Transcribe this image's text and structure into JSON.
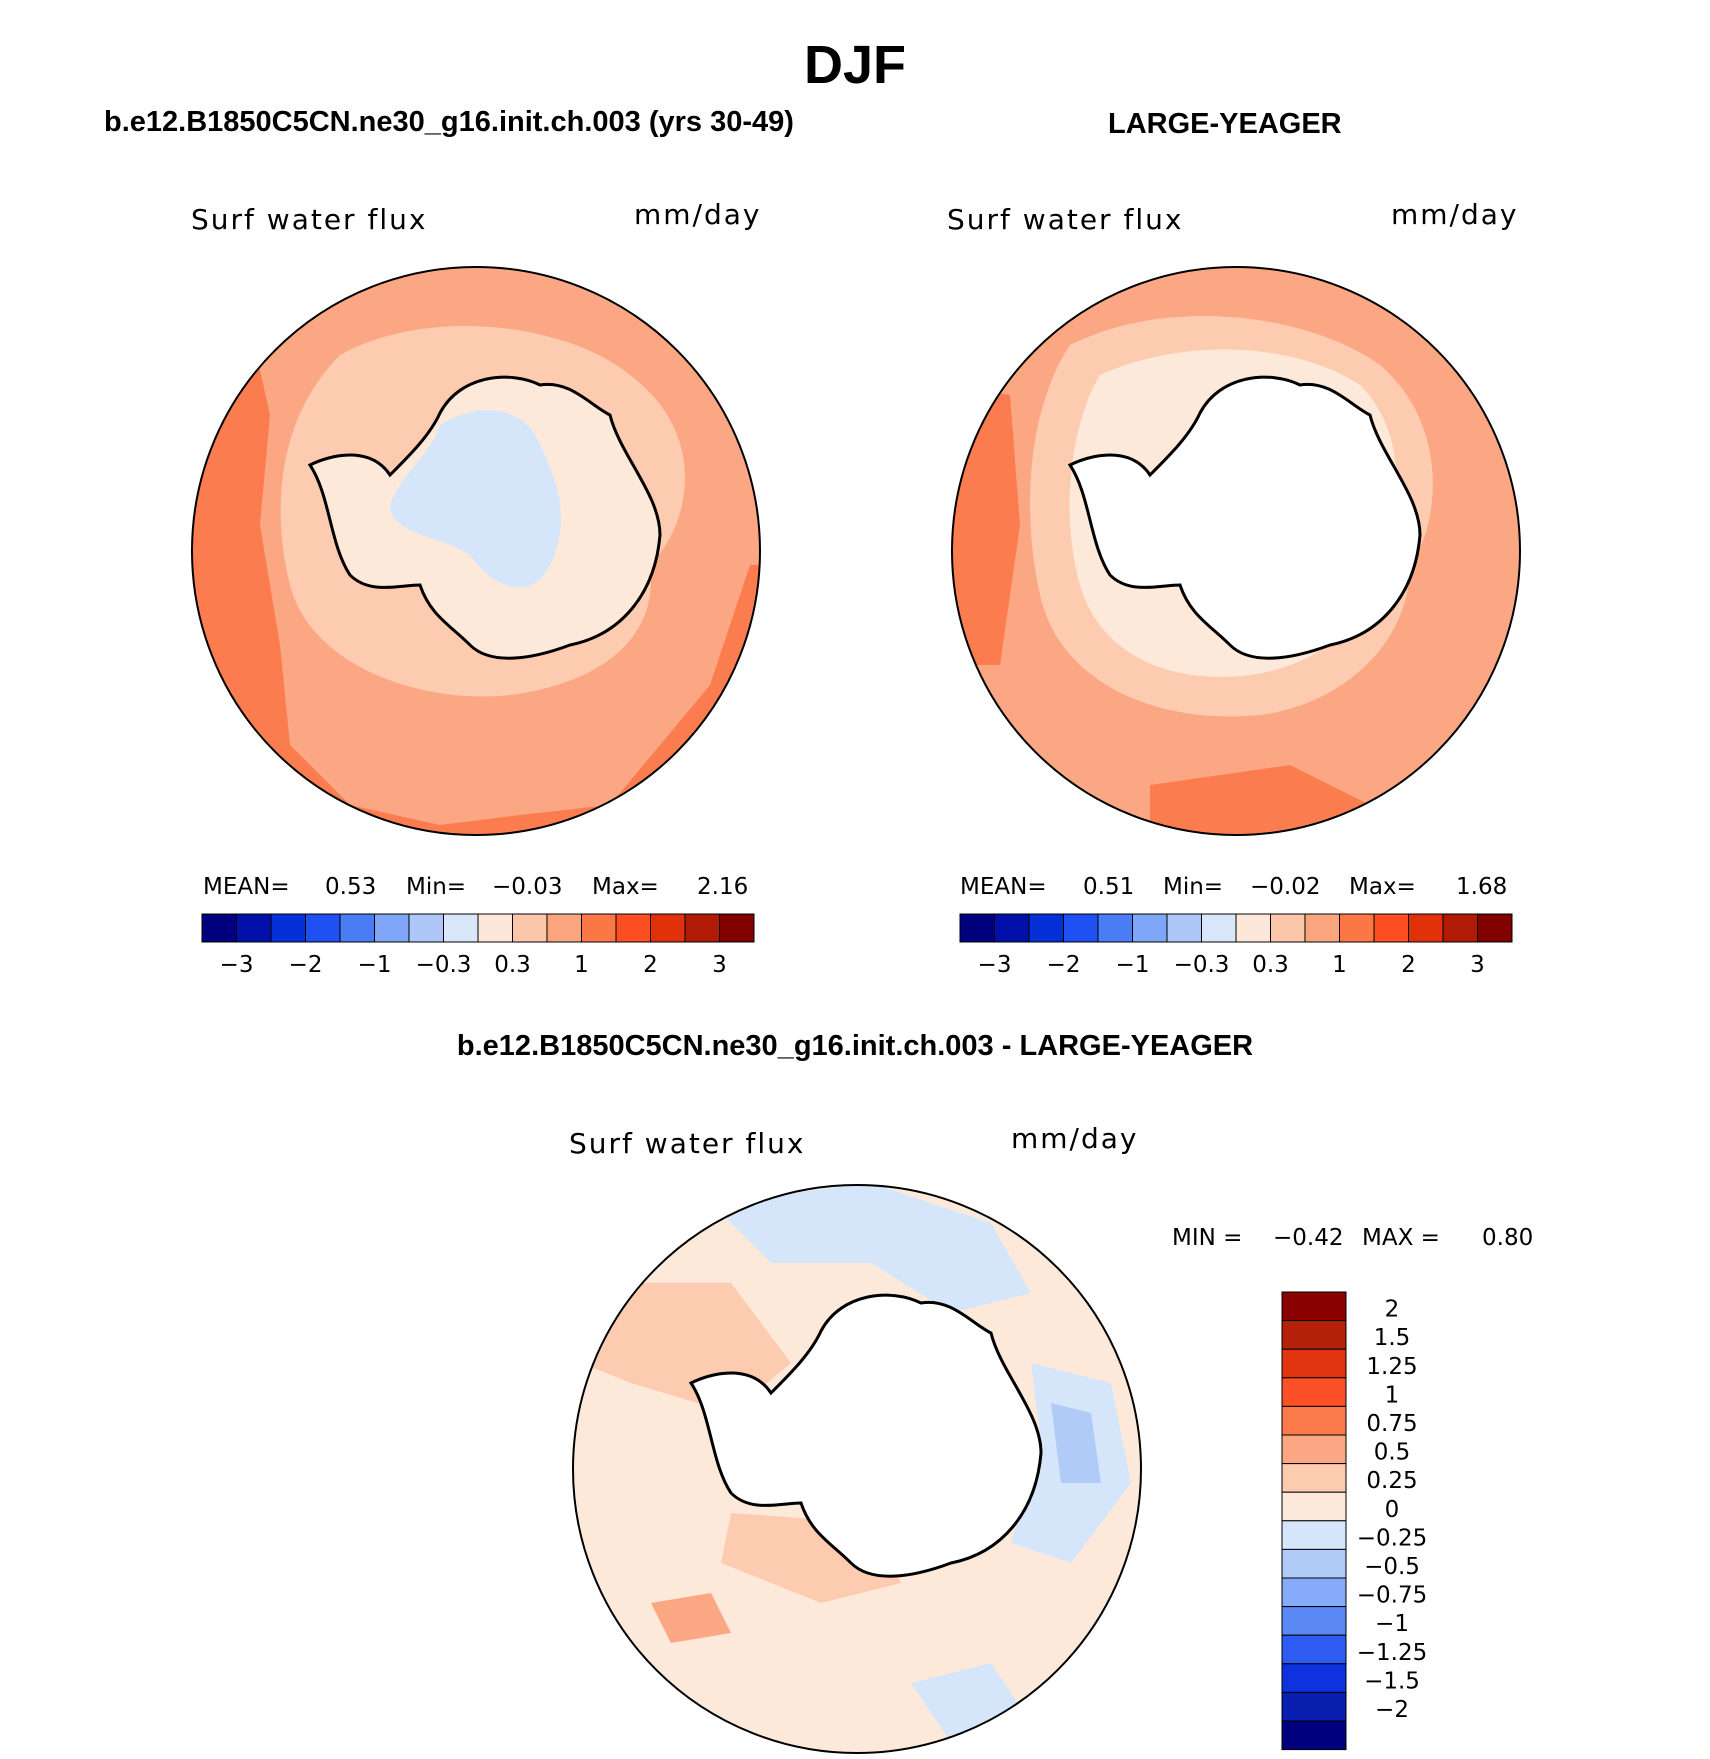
{
  "title": "DJF",
  "panels": [
    {
      "heading": "b.e12.B1850C5CN.ne30_g16.init.ch.003 (yrs 30-49)",
      "variable": "Surf water flux",
      "units": "mm/day",
      "stats": {
        "mean_label": "MEAN=",
        "mean": "0.53",
        "min_label": "Min=",
        "min": "−0.03",
        "max_label": "Max=",
        "max": "2.16"
      }
    },
    {
      "heading": "LARGE-YEAGER",
      "variable": "Surf water flux",
      "units": "mm/day",
      "stats": {
        "mean_label": "MEAN=",
        "mean": "0.51",
        "min_label": "Min=",
        "min": "−0.02",
        "max_label": "Max=",
        "max": "1.68"
      }
    }
  ],
  "colorbar": {
    "labels": [
      "−3",
      "−2",
      "−1",
      "−0.3",
      "0.3",
      "1",
      "2",
      "3"
    ],
    "colors": [
      "#00007f",
      "#0010a8",
      "#0530d5",
      "#1e50f2",
      "#4a7df5",
      "#7ea5f7",
      "#aec6f8",
      "#d8e8fa",
      "#fde7d8",
      "#fcc6aa",
      "#fba57f",
      "#fb7846",
      "#fb4e22",
      "#e0320a",
      "#b11a04",
      "#800000"
    ]
  },
  "diff_panel": {
    "heading": "b.e12.B1850C5CN.ne30_g16.init.ch.003 - LARGE-YEAGER",
    "variable": "Surf water flux",
    "units": "mm/day",
    "min_label": "MIN =",
    "min": "−0.42",
    "max_label": "MAX =",
    "max": "0.80",
    "colorbar_labels": [
      "2",
      "1.5",
      "1.25",
      "1",
      "0.75",
      "0.5",
      "0.25",
      "0",
      "−0.25",
      "−0.5",
      "−0.75",
      "−1",
      "−1.25",
      "−1.5",
      "−2"
    ],
    "colorbar_colors": [
      "#8b0000",
      "#b5210a",
      "#e03510",
      "#fb5028",
      "#fa7a4c",
      "#fba784",
      "#fdcbb0",
      "#fde9da",
      "#d6e6fa",
      "#b0cbf8",
      "#86abf8",
      "#5a88f5",
      "#2e5cf2",
      "#0f32e0",
      "#0a1eb0",
      "#00007f"
    ]
  },
  "map_colors": {
    "ocean_strong": "#fb7d4f",
    "ocean_mid": "#fba784",
    "ocean_light": "#fdcbb0",
    "ocean_pale": "#fde9da",
    "land_blue": "#d6e6fa",
    "blue_mid": "#b0cbf8"
  }
}
